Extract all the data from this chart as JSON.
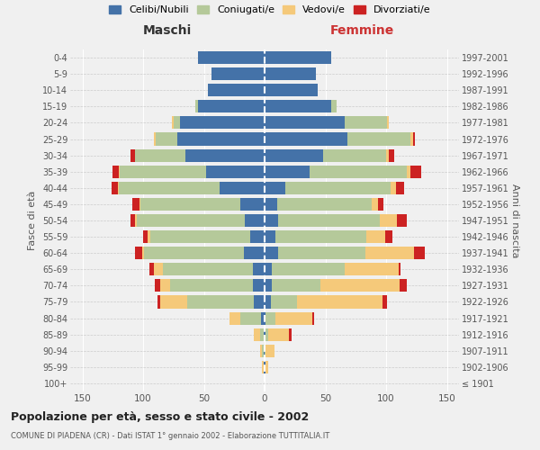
{
  "age_groups": [
    "100+",
    "95-99",
    "90-94",
    "85-89",
    "80-84",
    "75-79",
    "70-74",
    "65-69",
    "60-64",
    "55-59",
    "50-54",
    "45-49",
    "40-44",
    "35-39",
    "30-34",
    "25-29",
    "20-24",
    "15-19",
    "10-14",
    "5-9",
    "0-4"
  ],
  "birth_years": [
    "≤ 1901",
    "1902-1906",
    "1907-1911",
    "1912-1916",
    "1917-1921",
    "1922-1926",
    "1927-1931",
    "1932-1936",
    "1937-1941",
    "1942-1946",
    "1947-1951",
    "1952-1956",
    "1957-1961",
    "1962-1966",
    "1967-1971",
    "1972-1976",
    "1977-1981",
    "1982-1986",
    "1987-1991",
    "1992-1996",
    "1997-2001"
  ],
  "colors": {
    "celibe": "#4472a8",
    "coniugato": "#b5c99a",
    "vedovo": "#f5c97a",
    "divorziato": "#cc2222"
  },
  "maschi": {
    "celibe": [
      0,
      1,
      1,
      1,
      3,
      9,
      10,
      10,
      17,
      12,
      16,
      20,
      37,
      48,
      65,
      72,
      70,
      55,
      47,
      44,
      55
    ],
    "coniugato": [
      0,
      0,
      1,
      3,
      17,
      55,
      68,
      74,
      82,
      82,
      89,
      82,
      83,
      71,
      42,
      18,
      5,
      2,
      0,
      0,
      0
    ],
    "vedovo": [
      0,
      1,
      2,
      5,
      9,
      22,
      8,
      7,
      2,
      2,
      2,
      1,
      1,
      1,
      0,
      1,
      1,
      0,
      0,
      0,
      0
    ],
    "divorziato": [
      0,
      0,
      0,
      0,
      0,
      2,
      4,
      4,
      6,
      4,
      3,
      6,
      5,
      5,
      3,
      0,
      0,
      0,
      0,
      0,
      0
    ]
  },
  "femmine": {
    "nubile": [
      0,
      1,
      0,
      1,
      1,
      5,
      6,
      6,
      11,
      9,
      11,
      10,
      17,
      37,
      48,
      68,
      66,
      55,
      44,
      42,
      55
    ],
    "coniugata": [
      0,
      0,
      1,
      2,
      8,
      22,
      40,
      60,
      72,
      75,
      84,
      78,
      87,
      80,
      52,
      52,
      35,
      4,
      0,
      0,
      0
    ],
    "vedova": [
      0,
      2,
      7,
      17,
      30,
      70,
      65,
      44,
      40,
      15,
      14,
      5,
      4,
      3,
      2,
      2,
      1,
      0,
      0,
      0,
      0
    ],
    "divorziata": [
      0,
      0,
      0,
      2,
      2,
      4,
      6,
      2,
      9,
      6,
      8,
      5,
      7,
      9,
      5,
      2,
      0,
      0,
      0,
      0,
      0
    ]
  },
  "xlim": 160,
  "title": "Popolazione per età, sesso e stato civile - 2002",
  "subtitle": "COMUNE DI PIADENA (CR) - Dati ISTAT 1° gennaio 2002 - Elaborazione TUTTITALIA.IT",
  "ylabel_left": "Fasce di età",
  "ylabel_right": "Anni di nascita",
  "xlabel_left": "Maschi",
  "xlabel_right": "Femmine",
  "legend_labels": [
    "Celibi/Nubili",
    "Coniugati/e",
    "Vedovi/e",
    "Divorziati/e"
  ],
  "background_color": "#f0f0f0"
}
